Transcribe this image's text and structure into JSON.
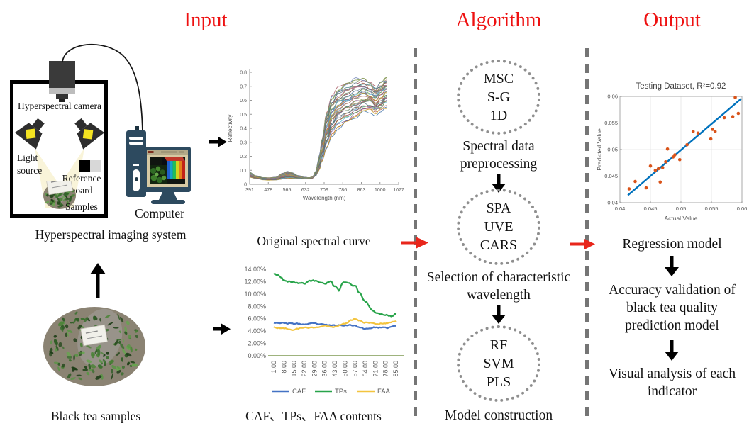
{
  "headers": {
    "input": "Input",
    "algorithm": "Algorithm",
    "output": "Output"
  },
  "colors": {
    "header_red": "#ee1111",
    "arrow_red": "#e8261b",
    "dash_gray": "#757575",
    "dotted_circle_gray": "#8f8f8f",
    "matlab_blue": "#0072bd",
    "matlab_orange": "#d95319"
  },
  "input_section": {
    "system": {
      "camera_label": "Hyperspectral camera",
      "light_source_line1": "Light",
      "light_source_line2": "source",
      "reference_line1": "Reference",
      "reference_line2": "board",
      "samples_label": "Samples",
      "caption": "Hyperspectral imaging system"
    },
    "computer_label": "Computer",
    "tea_caption": "Black tea samples",
    "original_curve_label": "Original spectral curve",
    "contents_caption": "CAF、TPs、FAA contents"
  },
  "algorithm_section": {
    "circles": [
      {
        "lines": [
          "MSC",
          "S-G",
          "1D"
        ],
        "caption": "Spectral data preprocessing"
      },
      {
        "lines": [
          "SPA",
          "UVE",
          "CARS"
        ],
        "caption": "Selection of characteristic wavelength"
      },
      {
        "lines": [
          "RF",
          "SVM",
          "PLS"
        ],
        "caption": "Model construction"
      }
    ]
  },
  "output_section": {
    "steps": [
      "Regression model",
      "Accuracy validation of black tea quality prediction model",
      "Visual analysis of each indicator"
    ]
  },
  "chart_data": [
    {
      "id": "spectral",
      "type": "line",
      "title": "",
      "xlabel": "Wavelength (nm)",
      "ylabel": "Reflectivity",
      "xlim": [
        391,
        1077
      ],
      "ylim": [
        0,
        0.8
      ],
      "x_ticks": [
        "391",
        "478",
        "565",
        "632",
        "709",
        "786",
        "863",
        "1000",
        "1077"
      ],
      "y_ticks": [
        "0",
        "0.1",
        "0.2",
        "0.3",
        "0.4",
        "0.5",
        "0.6",
        "0.7",
        "0.8"
      ],
      "grid": false,
      "n_curves": 38,
      "envelope": {
        "x": [
          391,
          420,
          455,
          478,
          510,
          545,
          565,
          585,
          615,
          645,
          665,
          680,
          695,
          710,
          725,
          745,
          770,
          800,
          840,
          880,
          915,
          945,
          970,
          995,
          1020
        ],
        "upper": [
          0.085,
          0.062,
          0.048,
          0.046,
          0.05,
          0.08,
          0.092,
          0.082,
          0.062,
          0.05,
          0.048,
          0.052,
          0.09,
          0.19,
          0.33,
          0.5,
          0.62,
          0.68,
          0.71,
          0.74,
          0.75,
          0.72,
          0.69,
          0.72,
          0.75
        ],
        "lower": [
          0.052,
          0.04,
          0.032,
          0.03,
          0.031,
          0.038,
          0.042,
          0.042,
          0.042,
          0.04,
          0.04,
          0.043,
          0.06,
          0.1,
          0.17,
          0.26,
          0.34,
          0.4,
          0.44,
          0.48,
          0.51,
          0.52,
          0.5,
          0.53,
          0.56
        ]
      },
      "palette": [
        "#3b6ea5",
        "#b0564b",
        "#c9a227",
        "#6a4f8f",
        "#6f9e4c",
        "#56b4d3",
        "#8c3b4a",
        "#7a8ca5",
        "#a97845",
        "#5f7f5f",
        "#9a6a9a",
        "#4f6d7a",
        "#b98b6b",
        "#708a3c",
        "#3f7f7f",
        "#a5555f",
        "#6b7fb5",
        "#8a9a5b",
        "#b5756b",
        "#577f9f"
      ]
    },
    {
      "id": "contents",
      "type": "line",
      "title": "",
      "xlabel": "",
      "ylabel": "",
      "xlim": [
        1,
        85
      ],
      "ylim": [
        0,
        14
      ],
      "x_ticks": [
        "1.00",
        "8.00",
        "15.00",
        "22.00",
        "29.00",
        "36.00",
        "43.00",
        "50.00",
        "57.00",
        "64.00",
        "71.00",
        "78.00",
        "85.00"
      ],
      "y_ticks": [
        "0.00%",
        "2.00%",
        "4.00%",
        "6.00%",
        "8.00%",
        "10.00%",
        "12.00%",
        "14.00%"
      ],
      "grid": false,
      "baseline_color": "#7e9a52",
      "legend_position": "bottom",
      "series": [
        {
          "name": "CAF",
          "color": "#4472c4",
          "noise": 0.18,
          "x": [
            1,
            8,
            15,
            22,
            29,
            36,
            43,
            50,
            57,
            61,
            64,
            71,
            78,
            85
          ],
          "values": [
            5.4,
            5.3,
            5.2,
            5.1,
            5.2,
            5.0,
            4.9,
            5.0,
            4.9,
            4.5,
            4.4,
            4.6,
            4.5,
            4.8
          ]
        },
        {
          "name": "TPs",
          "color": "#28a44a",
          "noise": 0.3,
          "x": [
            1,
            5,
            8,
            15,
            22,
            26,
            29,
            36,
            40,
            43,
            46,
            48,
            50,
            54,
            57,
            60,
            64,
            68,
            71,
            78,
            82,
            85
          ],
          "values": [
            13.3,
            12.9,
            12.3,
            11.9,
            11.8,
            12.2,
            12.1,
            11.8,
            12.0,
            11.2,
            10.5,
            11.7,
            11.9,
            11.6,
            11.3,
            10.2,
            8.9,
            7.6,
            7.0,
            6.6,
            6.4,
            6.8
          ]
        },
        {
          "name": "FAA",
          "color": "#f3c43f",
          "noise": 0.2,
          "x": [
            1,
            8,
            15,
            22,
            29,
            36,
            43,
            50,
            55,
            57,
            60,
            64,
            71,
            78,
            85
          ],
          "values": [
            4.6,
            4.4,
            4.3,
            4.5,
            4.6,
            4.8,
            4.7,
            5.3,
            5.8,
            6.0,
            5.7,
            5.4,
            5.2,
            5.3,
            5.6
          ]
        }
      ]
    },
    {
      "id": "scatter",
      "type": "scatter",
      "title": "Testing Dataset, R²=0.92",
      "xlabel": "Actual Value",
      "ylabel": "Predicted Value",
      "xlim": [
        0.04,
        0.06
      ],
      "ylim": [
        0.04,
        0.06
      ],
      "x_ticks": [
        "0.04",
        "0.045",
        "0.05",
        "0.055",
        "0.06"
      ],
      "y_ticks": [
        "0.04",
        "0.045",
        "0.05",
        "0.055",
        "0.06"
      ],
      "grid": true,
      "point_color": "#d95319",
      "points": [
        [
          0.0415,
          0.0426
        ],
        [
          0.0425,
          0.044
        ],
        [
          0.0443,
          0.0428
        ],
        [
          0.045,
          0.0469
        ],
        [
          0.0458,
          0.0461
        ],
        [
          0.0463,
          0.0464
        ],
        [
          0.0466,
          0.0439
        ],
        [
          0.047,
          0.0466
        ],
        [
          0.0475,
          0.0477
        ],
        [
          0.0478,
          0.0501
        ],
        [
          0.0487,
          0.0486
        ],
        [
          0.049,
          0.049
        ],
        [
          0.0498,
          0.0481
        ],
        [
          0.051,
          0.0509
        ],
        [
          0.052,
          0.0534
        ],
        [
          0.0528,
          0.0531
        ],
        [
          0.0549,
          0.052
        ],
        [
          0.0552,
          0.0538
        ],
        [
          0.0556,
          0.0534
        ],
        [
          0.0571,
          0.056
        ],
        [
          0.0585,
          0.0562
        ],
        [
          0.0589,
          0.0598
        ],
        [
          0.0594,
          0.0568
        ]
      ],
      "fit_line": {
        "x": [
          0.0413,
          0.0599
        ],
        "y": [
          0.0414,
          0.0596
        ],
        "color": "#0072bd"
      }
    }
  ]
}
